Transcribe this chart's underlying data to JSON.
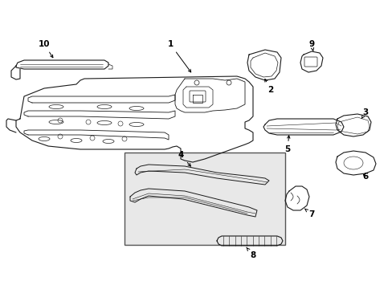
{
  "bg_color": "#ffffff",
  "line_color": "#1a1a1a",
  "box_bg": "#e8e8e8",
  "label_color": "#000000",
  "label_fontsize": 7.5,
  "lw": 0.8
}
